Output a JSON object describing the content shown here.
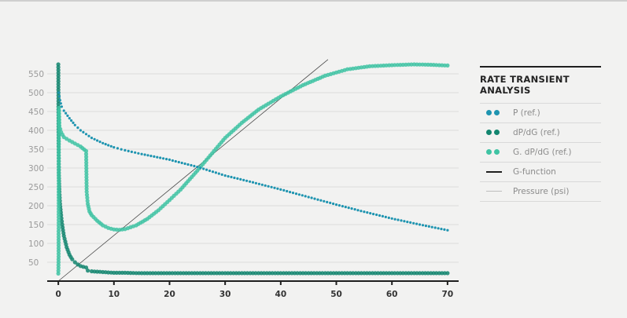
{
  "chart_data": {
    "type": "scatter",
    "title": "RATE TRANSIENT\nANALYSIS",
    "xlabel": "",
    "ylabel": "",
    "xlim": [
      -2,
      72
    ],
    "ylim": [
      0,
      600
    ],
    "x_ticks": [
      "0",
      "10",
      "20",
      "30",
      "40",
      "50",
      "60",
      "70"
    ],
    "y_ticks": [
      "50",
      "100",
      "150",
      "200",
      "250",
      "300",
      "350",
      "400",
      "450",
      "500",
      "550"
    ],
    "grid": "horizontal",
    "legend_position": "right",
    "series": [
      {
        "name": "P (ref.)",
        "style": "dots",
        "color": "#1e94b0",
        "points": [
          [
            0.1,
            500
          ],
          [
            0.3,
            480
          ],
          [
            0.6,
            463
          ],
          [
            1,
            452
          ],
          [
            2,
            432
          ],
          [
            3,
            414
          ],
          [
            4,
            400
          ],
          [
            5,
            390
          ],
          [
            6,
            380
          ],
          [
            8,
            366
          ],
          [
            10,
            355
          ],
          [
            12,
            347
          ],
          [
            15,
            337
          ],
          [
            20,
            322
          ],
          [
            25,
            303
          ],
          [
            30,
            280
          ],
          [
            35,
            262
          ],
          [
            40,
            243
          ],
          [
            45,
            223
          ],
          [
            50,
            203
          ],
          [
            55,
            184
          ],
          [
            60,
            166
          ],
          [
            65,
            150
          ],
          [
            70,
            135
          ]
        ]
      },
      {
        "name": "dP/dG (ref.)",
        "style": "dots",
        "color": "#12856f",
        "points": [
          [
            0,
            575
          ],
          [
            0.05,
            365
          ],
          [
            0.1,
            287
          ],
          [
            0.2,
            237
          ],
          [
            0.3,
            205
          ],
          [
            0.5,
            175
          ],
          [
            0.7,
            150
          ],
          [
            1,
            120
          ],
          [
            1.5,
            90
          ],
          [
            2,
            70
          ],
          [
            2.5,
            58
          ],
          [
            3,
            50
          ],
          [
            3.5,
            44
          ],
          [
            4,
            40
          ],
          [
            5,
            36
          ],
          [
            5.3,
            28
          ],
          [
            6,
            26
          ],
          [
            7,
            25
          ],
          [
            8,
            24
          ],
          [
            10,
            22
          ],
          [
            12,
            22
          ],
          [
            15,
            21
          ],
          [
            20,
            21
          ],
          [
            25,
            21
          ],
          [
            30,
            21
          ],
          [
            40,
            21
          ],
          [
            50,
            21
          ],
          [
            60,
            21
          ],
          [
            70,
            21
          ]
        ]
      },
      {
        "name": "G. dP/dG (ref.)",
        "style": "dots",
        "color": "#3fc3a3",
        "points": [
          [
            0,
            20
          ],
          [
            0.05,
            65
          ],
          [
            0.1,
            460
          ],
          [
            0.2,
            412
          ],
          [
            0.5,
            395
          ],
          [
            1,
            382
          ],
          [
            2,
            373
          ],
          [
            3,
            365
          ],
          [
            4,
            357
          ],
          [
            5,
            345
          ],
          [
            5.1,
            237
          ],
          [
            5.3,
            205
          ],
          [
            5.6,
            185
          ],
          [
            6,
            175
          ],
          [
            7,
            160
          ],
          [
            8,
            148
          ],
          [
            9,
            141
          ],
          [
            10,
            137
          ],
          [
            11,
            136
          ],
          [
            12,
            138
          ],
          [
            14,
            148
          ],
          [
            16,
            165
          ],
          [
            18,
            188
          ],
          [
            20,
            215
          ],
          [
            22,
            243
          ],
          [
            25,
            293
          ],
          [
            28,
            345
          ],
          [
            30,
            380
          ],
          [
            33,
            420
          ],
          [
            36,
            455
          ],
          [
            40,
            490
          ],
          [
            44,
            520
          ],
          [
            48,
            545
          ],
          [
            52,
            562
          ],
          [
            56,
            570
          ],
          [
            60,
            573
          ],
          [
            64,
            575
          ],
          [
            67,
            574
          ],
          [
            70,
            572
          ]
        ]
      },
      {
        "name": "G-function",
        "style": "line",
        "color": "#1f1f1f",
        "points": []
      },
      {
        "name": "Pressure (psi)",
        "style": "line",
        "color": "#4a4a4a",
        "points": [
          [
            0,
            0
          ],
          [
            48.5,
            588
          ]
        ]
      }
    ]
  }
}
